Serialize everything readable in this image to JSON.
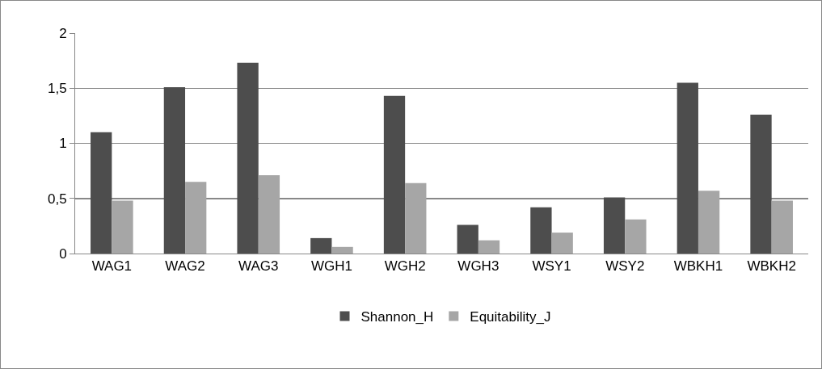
{
  "chart_data": {
    "type": "bar",
    "categories": [
      "WAG1",
      "WAG2",
      "WAG3",
      "WGH1",
      "WGH2",
      "WGH3",
      "WSY1",
      "WSY2",
      "WBKH1",
      "WBKH2"
    ],
    "series": [
      {
        "name": "Shannon_H",
        "color": "#4d4d4d",
        "values": [
          1.1,
          1.51,
          1.73,
          0.14,
          1.43,
          0.26,
          0.42,
          0.51,
          1.55,
          1.26
        ]
      },
      {
        "name": "Equitability_J",
        "color": "#a6a6a6",
        "values": [
          0.48,
          0.65,
          0.71,
          0.06,
          0.64,
          0.12,
          0.19,
          0.31,
          0.57,
          0.48
        ]
      }
    ],
    "ylim": [
      0,
      2
    ],
    "yticks": [
      0,
      {
        "value": 0.5,
        "label": "0,5"
      },
      1,
      {
        "value": 1.5,
        "label": "1,5"
      },
      2
    ],
    "grid": "y",
    "legend": "bottom"
  }
}
